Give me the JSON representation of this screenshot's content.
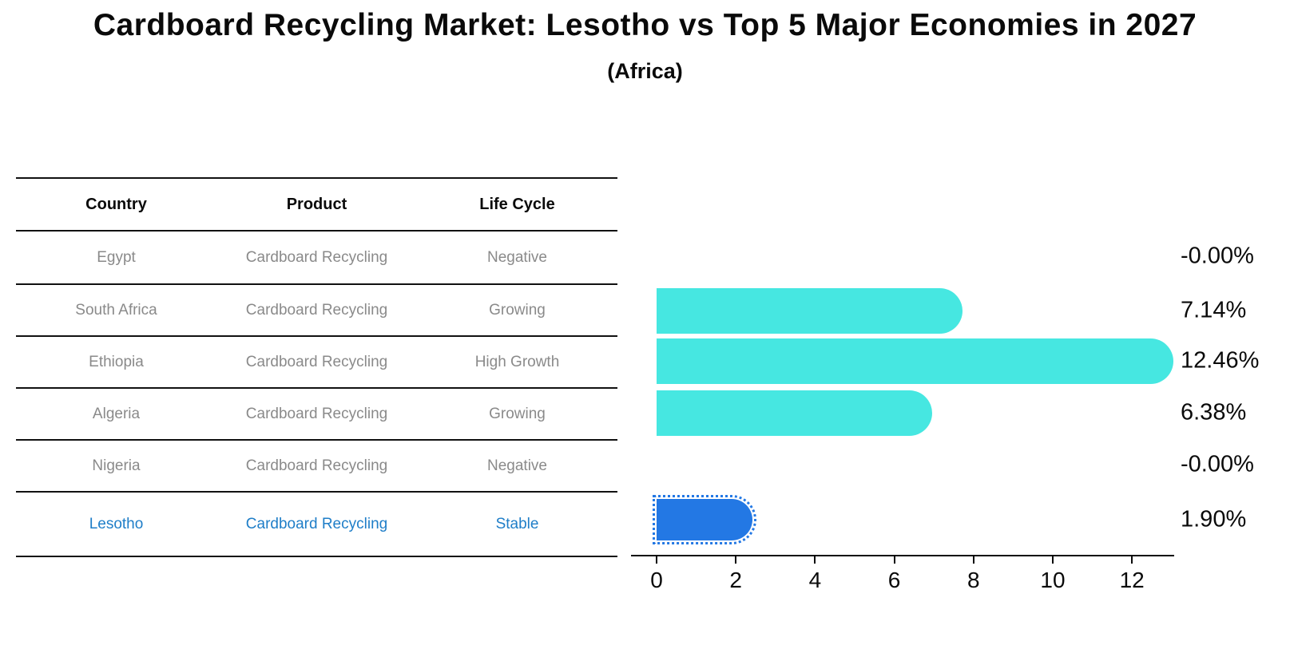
{
  "header": {
    "title": "Cardboard Recycling Market: Lesotho vs Top 5 Major Economies in 2027",
    "subtitle": "(Africa)"
  },
  "table": {
    "columns": [
      "Country",
      "Product",
      "Life Cycle"
    ],
    "rows": [
      {
        "country": "Egypt",
        "product": "Cardboard Recycling",
        "life_cycle": "Negative",
        "highlight": false
      },
      {
        "country": "South Africa",
        "product": "Cardboard Recycling",
        "life_cycle": "Growing",
        "highlight": false
      },
      {
        "country": "Ethiopia",
        "product": "Cardboard Recycling",
        "life_cycle": "High Growth",
        "highlight": false
      },
      {
        "country": "Algeria",
        "product": "Cardboard Recycling",
        "life_cycle": "Growing",
        "highlight": false
      },
      {
        "country": "Nigeria",
        "product": "Cardboard Recycling",
        "life_cycle": "Negative",
        "highlight": false
      },
      {
        "country": "Lesotho",
        "product": "Cardboard Recycling",
        "life_cycle": "Stable",
        "highlight": true
      }
    ]
  },
  "chart_data": {
    "type": "bar",
    "orientation": "horizontal",
    "title": "Cardboard Recycling Market: Lesotho vs Top 5 Major Economies in 2027 (Africa)",
    "categories": [
      "Egypt",
      "South Africa",
      "Ethiopia",
      "Algeria",
      "Nigeria",
      "Lesotho"
    ],
    "values": [
      -0.0,
      7.14,
      12.46,
      6.38,
      -0.0,
      1.9
    ],
    "value_labels": [
      "-0.00%",
      "7.14%",
      "12.46%",
      "6.38%",
      "-0.00%",
      "1.90%"
    ],
    "x_ticks": [
      0,
      2,
      4,
      6,
      8,
      10,
      12
    ],
    "xlim": [
      0,
      13.1
    ],
    "grid": false,
    "legend": null,
    "colors": {
      "bar": "#46E7E1",
      "highlight_bar": "#2378E4",
      "highlight_text": "#1F7EC8",
      "cell_text": "#8A8A8A",
      "axis": "#0A0A0A"
    }
  }
}
